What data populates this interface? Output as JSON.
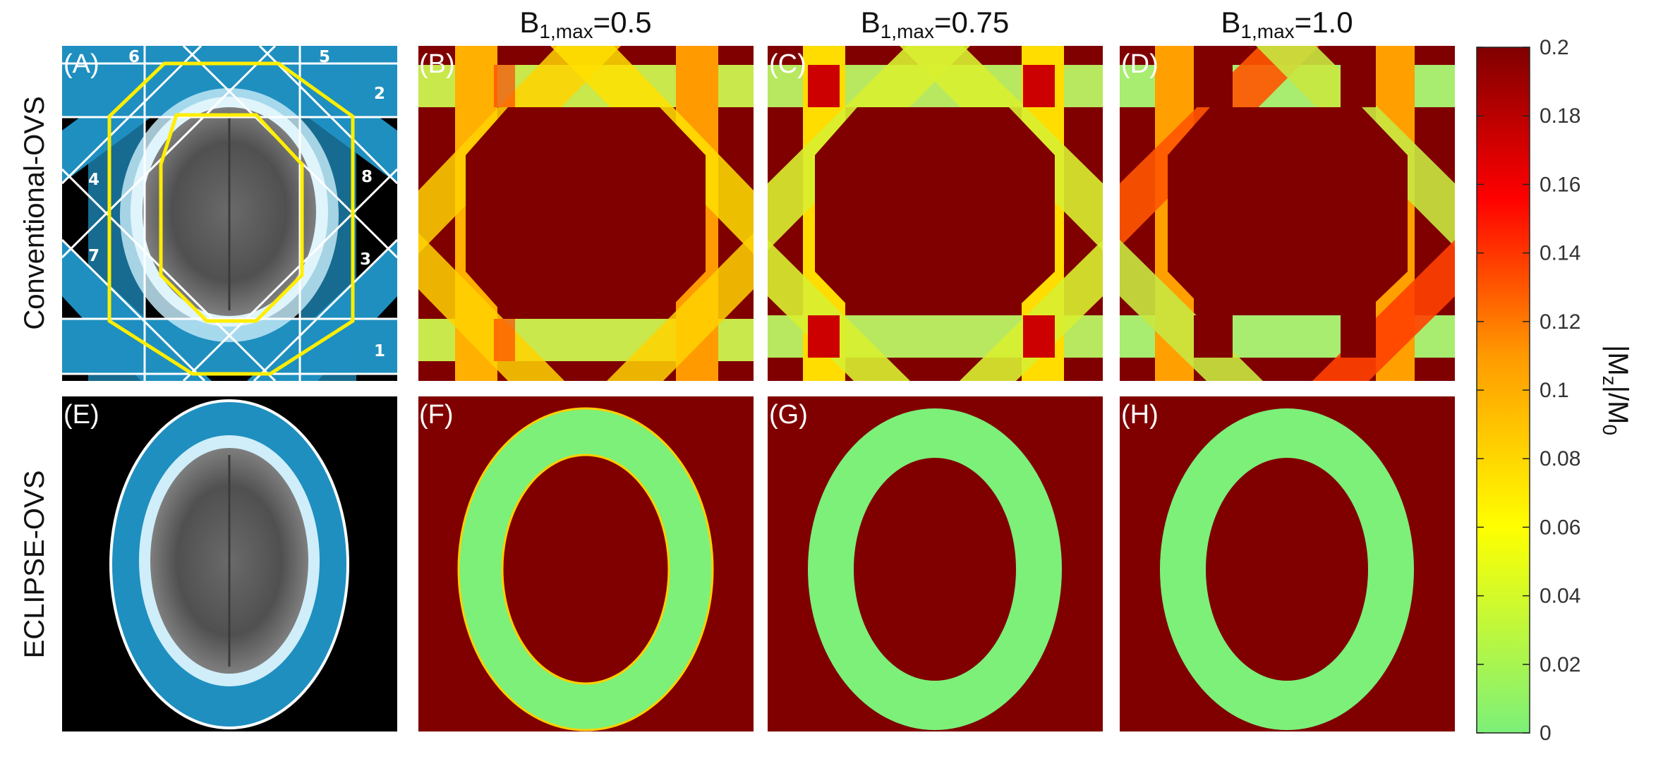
{
  "rows": {
    "top": "Conventional-OVS",
    "bottom": "ECLIPSE-OVS"
  },
  "columns": {
    "b": {
      "sym": "B",
      "sub": "1,max",
      "val": "=0.5"
    },
    "c": {
      "sym": "B",
      "sub": "1,max",
      "val": "=0.75"
    },
    "d": {
      "sym": "B",
      "sub": "1,max",
      "val": "=1.0"
    }
  },
  "panels": {
    "a": "(A)",
    "b": "(B)",
    "c": "(C)",
    "d": "(D)",
    "e": "(E)",
    "f": "(F)",
    "g": "(G)",
    "h": "(H)"
  },
  "bands": [
    "1",
    "2",
    "3",
    "4",
    "5",
    "6",
    "7",
    "8"
  ],
  "colorbar": {
    "ticks": [
      "0",
      "0.02",
      "0.04",
      "0.06",
      "0.08",
      "0.1",
      "0.12",
      "0.14",
      "0.16",
      "0.18",
      "0.2"
    ],
    "label_pre": "|M",
    "label_sub": "z",
    "label_mid": "|/M",
    "label_sub2": "0",
    "colors": [
      "#7cf079",
      "#ffff00",
      "#ff9a00",
      "#ff0000",
      "#800000"
    ]
  }
}
